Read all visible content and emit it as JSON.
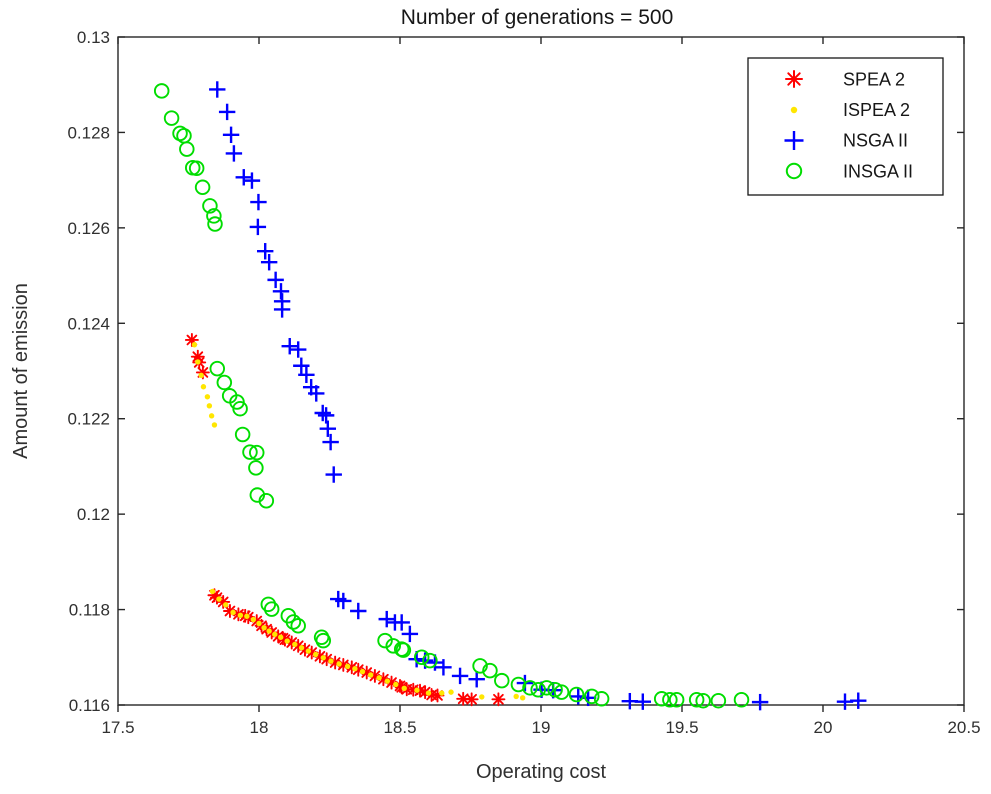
{
  "figure": {
    "title": "Number of generations = 500",
    "xlabel": "Operating cost",
    "ylabel": "Amount of emission"
  },
  "chart_data": {
    "type": "scatter",
    "title": "Number of generations = 500",
    "xlabel": "Operating cost",
    "ylabel": "Amount of emission",
    "xlim": [
      17.5,
      20.5
    ],
    "ylim": [
      0.116,
      0.13
    ],
    "xticks": [
      17.5,
      18,
      18.5,
      19,
      19.5,
      20,
      20.5
    ],
    "xtick_labels": [
      "17.5",
      "18",
      "18.5",
      "19",
      "19.5",
      "20",
      "20.5"
    ],
    "yticks": [
      0.116,
      0.118,
      0.12,
      0.122,
      0.124,
      0.126,
      0.128,
      0.13
    ],
    "ytick_labels": [
      "0.116",
      "0.118",
      "0.12",
      "0.122",
      "0.124",
      "0.126",
      "0.128",
      "0.13"
    ],
    "grid": false,
    "legend_position": "top-right",
    "series": [
      {
        "name": "SPEA 2",
        "marker": "asterisk",
        "color": "#ff0000",
        "points": [
          [
            17.762,
            0.12365
          ],
          [
            17.783,
            0.1233
          ],
          [
            17.788,
            0.12318
          ],
          [
            17.801,
            0.12297
          ],
          [
            17.842,
            0.1183
          ],
          [
            17.851,
            0.11825
          ],
          [
            17.873,
            0.11816
          ],
          [
            17.897,
            0.11797
          ],
          [
            17.927,
            0.1179
          ],
          [
            17.951,
            0.11787
          ],
          [
            17.962,
            0.11784
          ],
          [
            17.992,
            0.11776
          ],
          [
            18.009,
            0.11766
          ],
          [
            18.027,
            0.11759
          ],
          [
            18.045,
            0.11752
          ],
          [
            18.068,
            0.11744
          ],
          [
            18.085,
            0.1174
          ],
          [
            18.092,
            0.11737
          ],
          [
            18.116,
            0.11731
          ],
          [
            18.139,
            0.11724
          ],
          [
            18.163,
            0.11716
          ],
          [
            18.187,
            0.1171
          ],
          [
            18.216,
            0.11702
          ],
          [
            18.24,
            0.11696
          ],
          [
            18.27,
            0.11689
          ],
          [
            18.299,
            0.11684
          ],
          [
            18.329,
            0.11679
          ],
          [
            18.352,
            0.11674
          ],
          [
            18.382,
            0.11668
          ],
          [
            18.411,
            0.11661
          ],
          [
            18.441,
            0.11654
          ],
          [
            18.47,
            0.11647
          ],
          [
            18.5,
            0.1164
          ],
          [
            18.506,
            0.11637
          ],
          [
            18.524,
            0.11633
          ],
          [
            18.547,
            0.11632
          ],
          [
            18.571,
            0.1163
          ],
          [
            18.589,
            0.11627
          ],
          [
            18.612,
            0.11621
          ],
          [
            18.633,
            0.1162
          ],
          [
            18.724,
            0.11613
          ],
          [
            18.754,
            0.11612
          ],
          [
            18.849,
            0.11612
          ]
        ]
      },
      {
        "name": "ISPEA 2",
        "marker": "dot",
        "color": "#ffe600",
        "points": [
          [
            17.771,
            0.12355
          ],
          [
            17.783,
            0.12319
          ],
          [
            17.795,
            0.12291
          ],
          [
            17.803,
            0.12267
          ],
          [
            17.817,
            0.12246
          ],
          [
            17.824,
            0.12227
          ],
          [
            17.832,
            0.12206
          ],
          [
            17.842,
            0.12187
          ],
          [
            17.835,
            0.11838
          ],
          [
            17.858,
            0.11822
          ],
          [
            17.882,
            0.1181
          ],
          [
            17.908,
            0.11794
          ],
          [
            17.934,
            0.11788
          ],
          [
            17.957,
            0.11786
          ],
          [
            17.98,
            0.11779
          ],
          [
            18.0,
            0.11771
          ],
          [
            18.018,
            0.11762
          ],
          [
            18.036,
            0.11755
          ],
          [
            18.056,
            0.11748
          ],
          [
            18.077,
            0.11742
          ],
          [
            18.1,
            0.11734
          ],
          [
            18.127,
            0.11727
          ],
          [
            18.151,
            0.1172
          ],
          [
            18.175,
            0.11713
          ],
          [
            18.201,
            0.11706
          ],
          [
            18.228,
            0.11699
          ],
          [
            18.255,
            0.11692
          ],
          [
            18.284,
            0.11686
          ],
          [
            18.314,
            0.11681
          ],
          [
            18.34,
            0.11676
          ],
          [
            18.367,
            0.1167
          ],
          [
            18.396,
            0.11663
          ],
          [
            18.426,
            0.11657
          ],
          [
            18.455,
            0.1165
          ],
          [
            18.485,
            0.11643
          ],
          [
            18.515,
            0.11635
          ],
          [
            18.56,
            0.11631
          ],
          [
            18.601,
            0.11625
          ],
          [
            18.648,
            0.11625
          ],
          [
            18.681,
            0.11627
          ],
          [
            18.79,
            0.11617
          ],
          [
            18.912,
            0.11618
          ],
          [
            18.935,
            0.11615
          ]
        ]
      },
      {
        "name": "NSGA II",
        "marker": "plus",
        "color": "#0000ff",
        "points": [
          [
            17.852,
            0.1289
          ],
          [
            17.887,
            0.12843
          ],
          [
            17.901,
            0.12795
          ],
          [
            17.911,
            0.12756
          ],
          [
            17.946,
            0.12706
          ],
          [
            17.975,
            0.12699
          ],
          [
            17.998,
            0.12654
          ],
          [
            17.996,
            0.12602
          ],
          [
            18.022,
            0.12551
          ],
          [
            18.036,
            0.12528
          ],
          [
            18.059,
            0.12491
          ],
          [
            18.078,
            0.12467
          ],
          [
            18.082,
            0.12446
          ],
          [
            18.082,
            0.12429
          ],
          [
            18.109,
            0.12352
          ],
          [
            18.139,
            0.12345
          ],
          [
            18.15,
            0.12311
          ],
          [
            18.168,
            0.12292
          ],
          [
            18.185,
            0.12266
          ],
          [
            18.203,
            0.12253
          ],
          [
            18.226,
            0.12212
          ],
          [
            18.238,
            0.12207
          ],
          [
            18.244,
            0.12179
          ],
          [
            18.254,
            0.12151
          ],
          [
            18.265,
            0.12083
          ],
          [
            18.281,
            0.11822
          ],
          [
            18.299,
            0.11818
          ],
          [
            18.352,
            0.11797
          ],
          [
            18.453,
            0.1178
          ],
          [
            18.482,
            0.11773
          ],
          [
            18.506,
            0.11773
          ],
          [
            18.535,
            0.11749
          ],
          [
            18.559,
            0.11696
          ],
          [
            18.589,
            0.11693
          ],
          [
            18.624,
            0.11689
          ],
          [
            18.654,
            0.11679
          ],
          [
            18.713,
            0.11661
          ],
          [
            18.772,
            0.11654
          ],
          [
            18.943,
            0.11646
          ],
          [
            19.002,
            0.11632
          ],
          [
            19.043,
            0.11631
          ],
          [
            19.132,
            0.11618
          ],
          [
            19.167,
            0.11615
          ],
          [
            19.315,
            0.11608
          ],
          [
            19.361,
            0.11607
          ],
          [
            19.777,
            0.11606
          ],
          [
            20.078,
            0.11607
          ],
          [
            20.125,
            0.11609
          ]
        ]
      },
      {
        "name": "INSGA II",
        "marker": "circle",
        "color": "#00dd00",
        "points": [
          [
            17.655,
            0.12887
          ],
          [
            17.69,
            0.1283
          ],
          [
            17.72,
            0.12798
          ],
          [
            17.734,
            0.12793
          ],
          [
            17.744,
            0.12765
          ],
          [
            17.765,
            0.12726
          ],
          [
            17.779,
            0.12725
          ],
          [
            17.8,
            0.12685
          ],
          [
            17.826,
            0.12646
          ],
          [
            17.84,
            0.12625
          ],
          [
            17.844,
            0.12608
          ],
          [
            17.852,
            0.12305
          ],
          [
            17.877,
            0.12276
          ],
          [
            17.896,
            0.12248
          ],
          [
            17.922,
            0.12235
          ],
          [
            17.933,
            0.12221
          ],
          [
            17.942,
            0.12167
          ],
          [
            17.968,
            0.1213
          ],
          [
            17.992,
            0.12129
          ],
          [
            17.989,
            0.12097
          ],
          [
            17.994,
            0.1204
          ],
          [
            18.026,
            0.12028
          ],
          [
            18.033,
            0.11811
          ],
          [
            18.045,
            0.11801
          ],
          [
            18.104,
            0.11787
          ],
          [
            18.122,
            0.11774
          ],
          [
            18.139,
            0.11766
          ],
          [
            18.222,
            0.11742
          ],
          [
            18.228,
            0.11735
          ],
          [
            18.447,
            0.11735
          ],
          [
            18.476,
            0.11724
          ],
          [
            18.506,
            0.11717
          ],
          [
            18.512,
            0.11715
          ],
          [
            18.577,
            0.117
          ],
          [
            18.606,
            0.11693
          ],
          [
            18.784,
            0.11682
          ],
          [
            18.819,
            0.11672
          ],
          [
            18.861,
            0.11651
          ],
          [
            18.92,
            0.11643
          ],
          [
            18.961,
            0.11636
          ],
          [
            18.99,
            0.11632
          ],
          [
            19.02,
            0.11636
          ],
          [
            19.05,
            0.11632
          ],
          [
            19.073,
            0.11627
          ],
          [
            19.126,
            0.11622
          ],
          [
            19.18,
            0.11618
          ],
          [
            19.215,
            0.11613
          ],
          [
            19.428,
            0.11613
          ],
          [
            19.457,
            0.11611
          ],
          [
            19.481,
            0.11611
          ],
          [
            19.552,
            0.11611
          ],
          [
            19.575,
            0.11609
          ],
          [
            19.629,
            0.11609
          ],
          [
            19.711,
            0.11611
          ]
        ]
      }
    ]
  }
}
